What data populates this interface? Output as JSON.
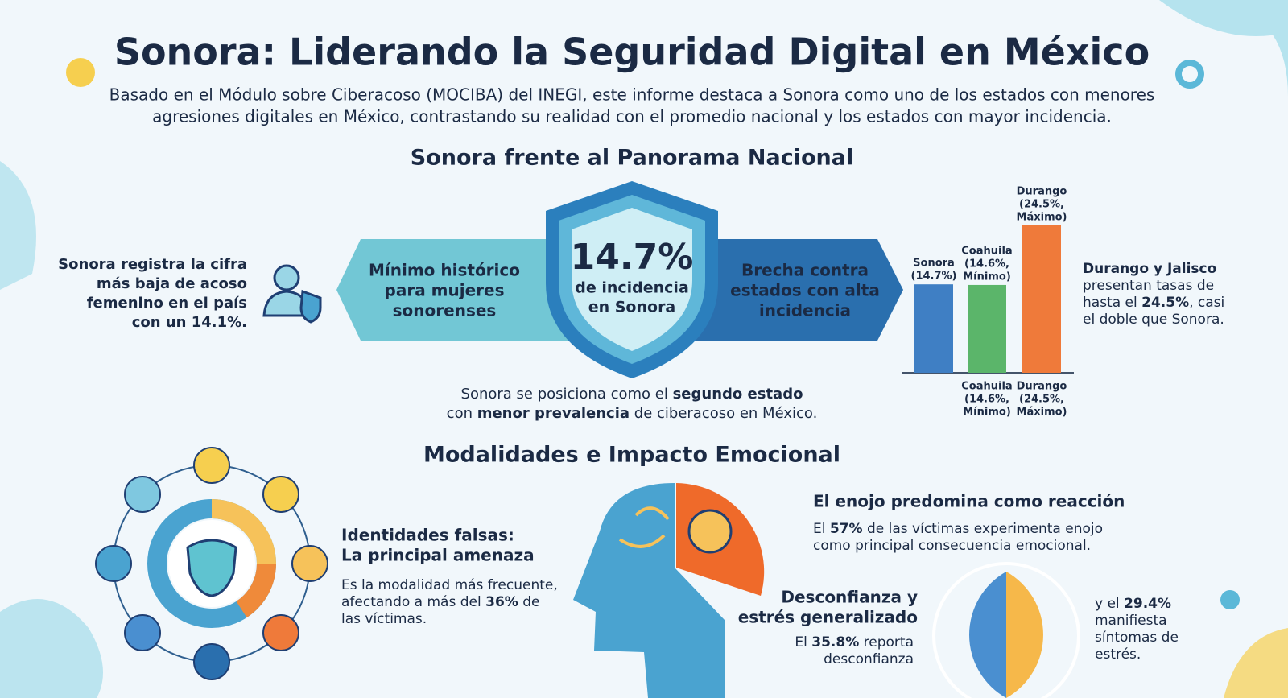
{
  "header": {
    "title": "Sonora: Liderando la Seguridad Digital en México",
    "subtitle_lines": [
      "Basado en el Módulo sobre Ciberacoso (MOCIBA) del INEGI, este informe destaca a Sonora como uno de los estados con menores",
      "agresiones digitales en México, contrastando su realidad con el promedio nacional y los estados con mayor incidencia."
    ]
  },
  "panorama": {
    "heading": "Sonora frente al Panorama Nacional",
    "left_note": [
      "Sonora registra la cifra",
      "más baja de acoso",
      "femenino en el país",
      "con un 14.1%."
    ],
    "left_banner": [
      "Mínimo histórico",
      "para mujeres",
      "sonorenses"
    ],
    "shield": {
      "value": "14.7%",
      "caption": [
        "de incidencia",
        "en Sonora"
      ]
    },
    "right_banner": [
      "Brecha contra",
      "estados con alta",
      "incidencia"
    ],
    "position_note": [
      [
        {
          "text": "Sonora se posiciona como el "
        },
        {
          "text": "segundo estado",
          "bold": true
        }
      ],
      [
        {
          "text": "con "
        },
        {
          "text": "menor prevalencia",
          "bold": true
        },
        {
          "text": " de ciberacoso en México."
        }
      ]
    ],
    "chart": {
      "bars": [
        {
          "label": [
            "Sonora",
            "(14.7%)"
          ],
          "value": 14.7,
          "color": "#3f7fc4"
        },
        {
          "label": [
            "Coahuila",
            "(14.6%,",
            "Mínimo)"
          ],
          "value": 14.6,
          "color": "#5bb56a"
        },
        {
          "label": [
            "Durango",
            "(24.5%,",
            "Máximo)"
          ],
          "value": 24.5,
          "color": "#ef7a3a"
        }
      ],
      "bottom_labels": [
        null,
        [
          "Coahuila",
          "(14.6%,",
          "Mínimo)"
        ],
        [
          "Durango",
          "(24.5%,",
          "Máximo)"
        ]
      ]
    },
    "right_note": [
      [
        {
          "text": "Durango y Jalisco",
          "bold": true
        }
      ],
      [
        {
          "text": "presentan tasas de"
        }
      ],
      [
        {
          "text": "hasta el "
        },
        {
          "text": "24.5%",
          "bold": true
        },
        {
          "text": ", casi"
        }
      ],
      [
        {
          "text": "el doble que Sonora."
        }
      ]
    ]
  },
  "modalidades": {
    "heading": "Modalidades e Impacto Emocional",
    "identidades": {
      "title": [
        "Identidades falsas:",
        "La principal amenaza"
      ],
      "body": [
        [
          {
            "text": "Es la modalidad más frecuente,"
          }
        ],
        [
          {
            "text": "afectando a más del "
          },
          {
            "text": "36%",
            "bold": true
          },
          {
            "text": " de"
          }
        ],
        [
          {
            "text": "las víctimas."
          }
        ]
      ]
    },
    "enojo": {
      "title": "El enojo predomina como reacción",
      "body": [
        [
          {
            "text": "El "
          },
          {
            "text": "57%",
            "bold": true
          },
          {
            "text": " de las víctimas experimenta enojo"
          }
        ],
        [
          {
            "text": "como principal consecuencia emocional."
          }
        ]
      ]
    },
    "desconfianza": {
      "title": [
        "Desconfianza y",
        "estrés generalizado"
      ],
      "body": [
        [
          {
            "text": "El "
          },
          {
            "text": "35.8%",
            "bold": true
          },
          {
            "text": " reporta"
          }
        ],
        [
          {
            "text": "desconfianza"
          }
        ]
      ]
    },
    "estres": [
      [
        {
          "text": "y el "
        },
        {
          "text": "29.4%",
          "bold": true
        }
      ],
      [
        {
          "text": "manifiesta"
        }
      ],
      [
        {
          "text": "síntomas de"
        }
      ],
      [
        {
          "text": "estrés."
        }
      ]
    ]
  }
}
